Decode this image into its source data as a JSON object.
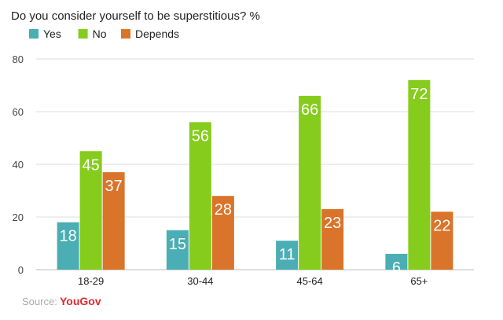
{
  "chart_data": {
    "type": "bar",
    "title": "Do you consider yourself to be superstitious? %",
    "xlabel": "",
    "ylabel": "",
    "categories": [
      "18-29",
      "30-44",
      "45-64",
      "65+"
    ],
    "series": [
      {
        "name": "Yes",
        "color": "#4aaeb4",
        "values": [
          18,
          15,
          11,
          6
        ]
      },
      {
        "name": "No",
        "color": "#86cc1c",
        "values": [
          45,
          56,
          66,
          72
        ]
      },
      {
        "name": "Depends",
        "color": "#d9742a",
        "values": [
          37,
          28,
          23,
          22
        ]
      }
    ],
    "ylim": [
      0,
      80
    ],
    "yticks": [
      0,
      20,
      40,
      60,
      80
    ],
    "grid": true,
    "legend_position": "top-left"
  },
  "source": {
    "prefix": "Source:",
    "brand": "YouGov"
  }
}
